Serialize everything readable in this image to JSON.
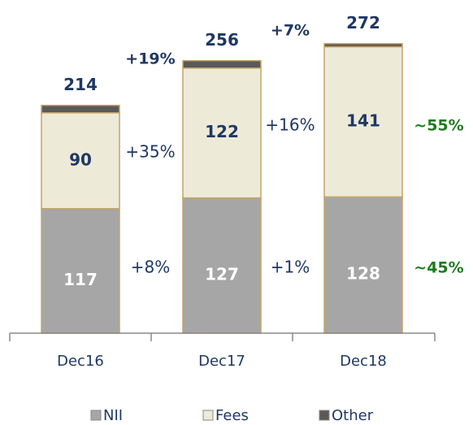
{
  "chart_data": {
    "type": "stacked_bar",
    "categories": [
      "Dec16",
      "Dec17",
      "Dec18"
    ],
    "series": [
      {
        "name": "NII",
        "color": "#a6a6a6",
        "values": [
          117,
          127,
          128
        ],
        "label_color": "#ffffff"
      },
      {
        "name": "Fees",
        "color": "#eeead8",
        "values": [
          90,
          122,
          141
        ],
        "label_color": "#1f3864"
      },
      {
        "name": "Other",
        "color": "#595959",
        "values": [
          7,
          7,
          3
        ]
      }
    ],
    "totals": [
      214,
      256,
      272
    ],
    "annotations": [
      "+35%",
      "+8%",
      "+19%",
      "+16%",
      "+1%",
      "+7%",
      "~55%",
      "~45%"
    ],
    "legend": "bottom"
  }
}
